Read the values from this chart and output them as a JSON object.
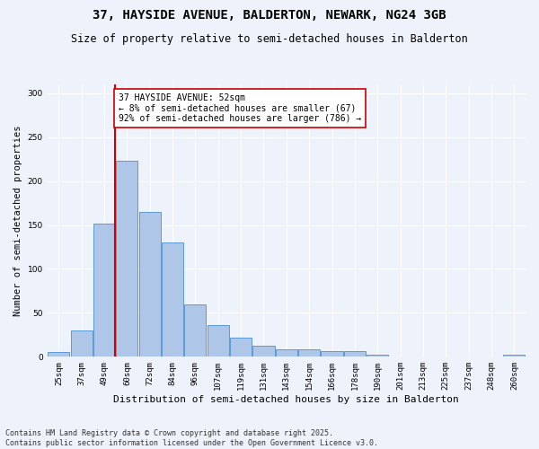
{
  "title1": "37, HAYSIDE AVENUE, BALDERTON, NEWARK, NG24 3GB",
  "title2": "Size of property relative to semi-detached houses in Balderton",
  "xlabel": "Distribution of semi-detached houses by size in Balderton",
  "ylabel": "Number of semi-detached properties",
  "footnote": "Contains HM Land Registry data © Crown copyright and database right 2025.\nContains public sector information licensed under the Open Government Licence v3.0.",
  "categories": [
    "25sqm",
    "37sqm",
    "49sqm",
    "60sqm",
    "72sqm",
    "84sqm",
    "96sqm",
    "107sqm",
    "119sqm",
    "131sqm",
    "143sqm",
    "154sqm",
    "166sqm",
    "178sqm",
    "190sqm",
    "201sqm",
    "213sqm",
    "225sqm",
    "237sqm",
    "248sqm",
    "260sqm"
  ],
  "values": [
    5,
    30,
    152,
    223,
    165,
    130,
    60,
    36,
    22,
    13,
    9,
    9,
    6,
    6,
    2,
    0,
    0,
    0,
    0,
    0,
    2
  ],
  "bar_color": "#aec6e8",
  "bar_edge_color": "#5b9bd5",
  "red_line_index": 2,
  "red_line_color": "#cc0000",
  "annotation_text": "37 HAYSIDE AVENUE: 52sqm\n← 8% of semi-detached houses are smaller (67)\n92% of semi-detached houses are larger (786) →",
  "annotation_box_color": "#ffffff",
  "annotation_box_edge": "#cc0000",
  "ylim": [
    0,
    310
  ],
  "yticks": [
    0,
    50,
    100,
    150,
    200,
    250,
    300
  ],
  "bg_color": "#eef2fb",
  "grid_color": "#ffffff",
  "title1_fontsize": 10,
  "title2_fontsize": 8.5,
  "xlabel_fontsize": 8,
  "ylabel_fontsize": 7.5,
  "tick_fontsize": 6.5,
  "annotation_fontsize": 7,
  "footnote_fontsize": 6
}
